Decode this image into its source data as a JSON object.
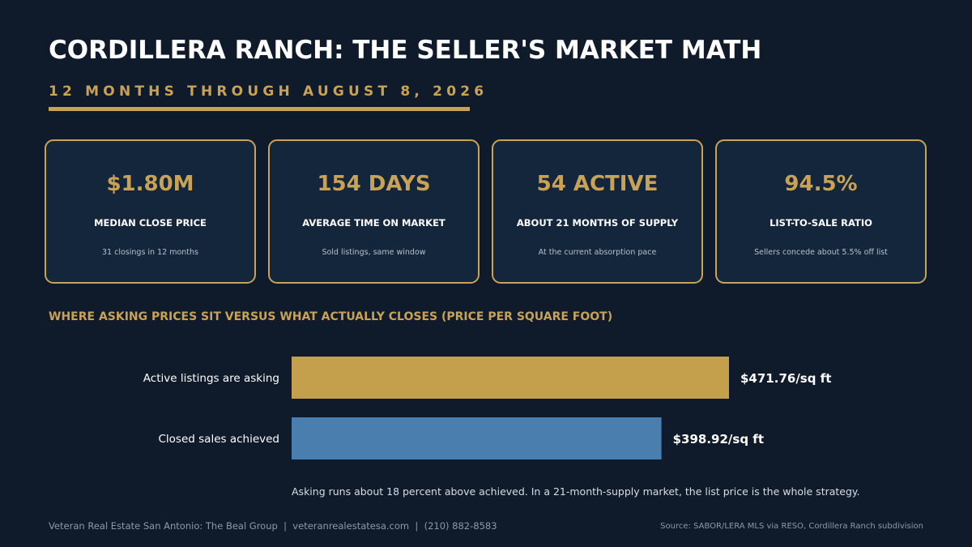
{
  "header": {
    "title": "CORDILLERA RANCH: THE SELLER'S MARKET MATH",
    "subtitle": "12 MONTHS THROUGH AUGUST 8, 2026"
  },
  "stats": [
    {
      "value": "$1.80M",
      "label": "MEDIAN CLOSE PRICE",
      "note": "31 closings in 12 months"
    },
    {
      "value": "154 DAYS",
      "label": "AVERAGE TIME ON MARKET",
      "note": "Sold listings, same window"
    },
    {
      "value": "54 ACTIVE",
      "label": "ABOUT 21 MONTHS OF SUPPLY",
      "note": "At the current absorption pace"
    },
    {
      "value": "94.5%",
      "label": "LIST-TO-SALE RATIO",
      "note": "Sellers concede about 5.5% off list"
    }
  ],
  "chart_data": {
    "type": "bar",
    "orientation": "horizontal",
    "title": "WHERE ASKING PRICES SIT VERSUS WHAT ACTUALLY CLOSES (PRICE PER SQUARE FOOT)",
    "categories": [
      "Active listings are asking",
      "Closed sales achieved"
    ],
    "values": [
      471.76,
      398.92
    ],
    "value_labels": [
      "$471.76/sq ft",
      "$398.92/sq ft"
    ],
    "colors": [
      "#c49f4c",
      "#4a7eaf"
    ],
    "xlim": [
      0,
      471.76
    ],
    "grid": false
  },
  "caption": "Asking runs about 18 percent above achieved. In a 21-month-supply market, the list price is the whole strategy.",
  "footer": {
    "left": "Veteran Real Estate San Antonio: The Beal Group  |  veteranrealestatesa.com  |  (210) 882-8583",
    "right": "Source: SABOR/LERA MLS via RESO, Cordillera Ranch subdivision"
  },
  "colors": {
    "background": "#0f1b2a",
    "card_background": "#13263b",
    "accent_gold": "#c9a256",
    "bar_blue": "#4a7eaf"
  }
}
